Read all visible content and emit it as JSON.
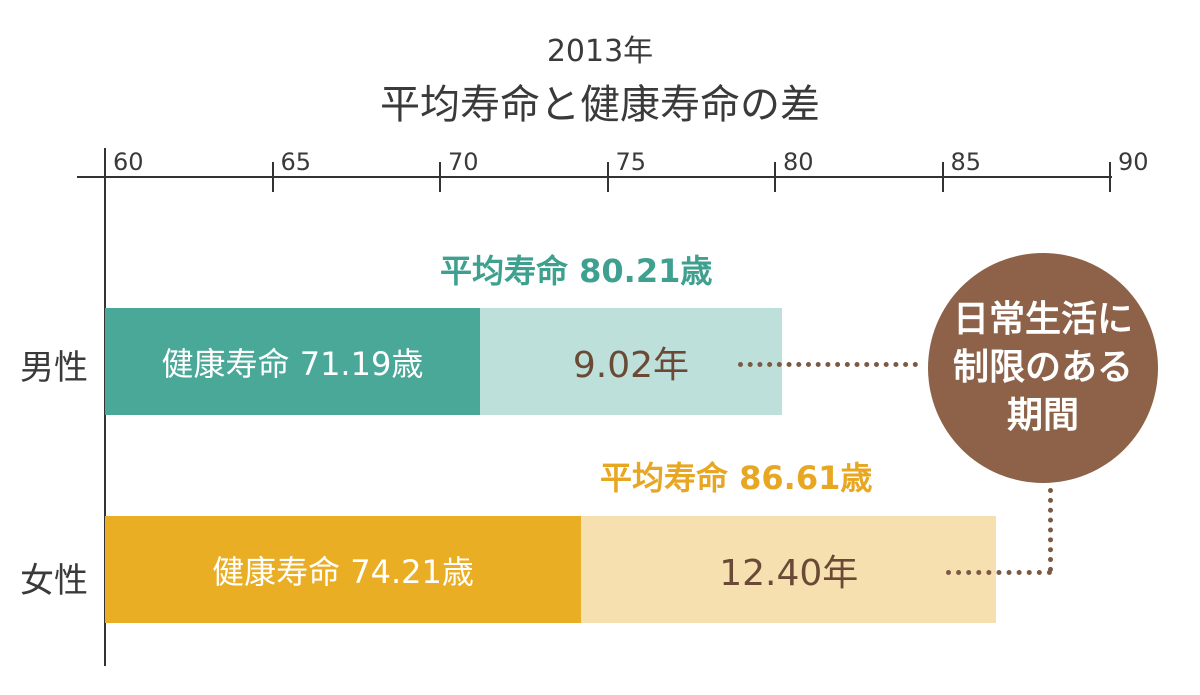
{
  "chart_data": {
    "type": "bar",
    "title": "平均寿命と健康寿命の差",
    "subtitle": "2013年",
    "xlim": [
      60,
      90
    ],
    "ticks": [
      "60",
      "65",
      "70",
      "75",
      "80",
      "85",
      "90"
    ],
    "categories": [
      "男性",
      "女性"
    ],
    "series": [
      {
        "name": "健康寿命",
        "values": [
          71.19,
          74.21
        ]
      },
      {
        "name": "平均寿命",
        "values": [
          80.21,
          86.61
        ]
      }
    ],
    "labels": {
      "male_healthy": "健康寿命 71.19歳",
      "male_avg": "平均寿命 80.21歳",
      "male_gap": "9.02年",
      "female_healthy": "健康寿命 74.21歳",
      "female_avg": "平均寿命 86.61歳",
      "female_gap": "12.40年"
    },
    "annotation": [
      "日常生活に",
      "制限のある",
      "期間"
    ],
    "colors": {
      "male_dark": "#4aa898",
      "male_light": "#bde0da",
      "male_text": "#3fa08f",
      "female_dark": "#eaae25",
      "female_light": "#f7e0b0",
      "female_text": "#e8a722",
      "gap_text": "#6a4a36",
      "bubble": "#8d6248"
    }
  }
}
